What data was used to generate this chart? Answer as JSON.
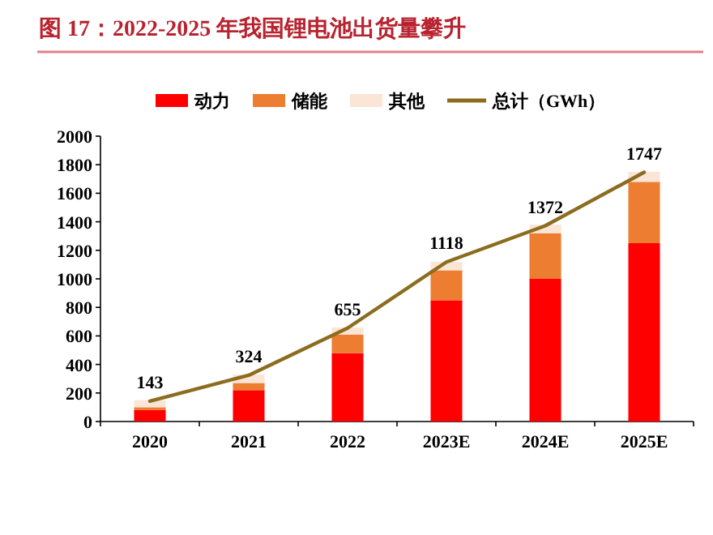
{
  "chart_data": {
    "type": "bar",
    "title": "图 17：2022-2025 年我国锂电池出货量攀升",
    "categories": [
      "2020",
      "2021",
      "2022",
      "2023E",
      "2024E",
      "2025E"
    ],
    "stacked": true,
    "legend": "top",
    "grid": false,
    "ylim": [
      0,
      2000
    ],
    "yticks": [
      0,
      200,
      400,
      600,
      800,
      1000,
      1200,
      1400,
      1600,
      1800,
      2000
    ],
    "series": [
      {
        "name": "动力",
        "color": "#ff0000",
        "values": [
          80,
          220,
          480,
          850,
          1000,
          1250
        ]
      },
      {
        "name": "储能",
        "color": "#ed7d31",
        "values": [
          20,
          50,
          130,
          210,
          320,
          430
        ]
      },
      {
        "name": "其他",
        "color": "#fbe5d6",
        "values": [
          50,
          60,
          50,
          60,
          60,
          70
        ]
      },
      {
        "name": "总计（GWh）",
        "type": "line",
        "color": "#8c6d1f",
        "marker": "none",
        "values": [
          143,
          324,
          655,
          1118,
          1372,
          1747
        ],
        "value_labels": [
          "143",
          "324",
          "655",
          "1118",
          "1372",
          "1747"
        ]
      }
    ]
  }
}
